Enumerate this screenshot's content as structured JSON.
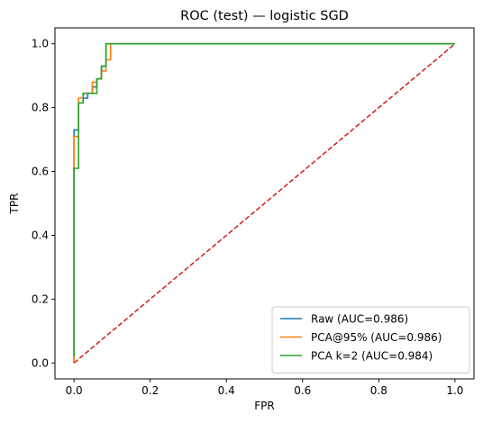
{
  "chart_data": {
    "type": "line",
    "title": "ROC (test) — logistic SGD",
    "xlabel": "FPR",
    "ylabel": "TPR",
    "xlim": [
      -0.05,
      1.05
    ],
    "ylim": [
      -0.05,
      1.05
    ],
    "xticks": [
      0.0,
      0.2,
      0.4,
      0.6,
      0.8,
      1.0
    ],
    "yticks": [
      0.0,
      0.2,
      0.4,
      0.6,
      0.8,
      1.0
    ],
    "xtick_labels": [
      "0.0",
      "0.2",
      "0.4",
      "0.6",
      "0.8",
      "1.0"
    ],
    "ytick_labels": [
      "0.0",
      "0.2",
      "0.4",
      "0.6",
      "0.8",
      "1.0"
    ],
    "grid": false,
    "legend_position": "lower-right",
    "series": [
      {
        "name": "Raw (AUC=0.986)",
        "color": "#1f77b4",
        "x": [
          0.0,
          0.0,
          0.0,
          0.0,
          0.0,
          0.0,
          0.0,
          0.0,
          0.0,
          0.0,
          0.0,
          0.0,
          0.0,
          0.012,
          0.012,
          0.012,
          0.012,
          0.024,
          0.024,
          0.036,
          0.036,
          0.048,
          0.048,
          0.06,
          0.06,
          0.072,
          0.072,
          0.084,
          0.084,
          1.0
        ],
        "y": [
          0.0,
          0.02,
          0.05,
          0.1,
          0.2,
          0.3,
          0.4,
          0.5,
          0.6,
          0.65,
          0.7,
          0.73,
          0.73,
          0.73,
          0.79,
          0.815,
          0.815,
          0.815,
          0.83,
          0.83,
          0.845,
          0.845,
          0.865,
          0.865,
          0.89,
          0.89,
          0.93,
          0.93,
          1.0,
          1.0
        ]
      },
      {
        "name": "PCA@95% (AUC=0.986)",
        "color": "#ff7f0e",
        "x": [
          0.0,
          0.0,
          0.0,
          0.0,
          0.0,
          0.0,
          0.0,
          0.012,
          0.012,
          0.012,
          0.024,
          0.024,
          0.048,
          0.048,
          0.06,
          0.06,
          0.072,
          0.072,
          0.084,
          0.084,
          0.096,
          0.096,
          1.0
        ],
        "y": [
          0.0,
          0.2,
          0.4,
          0.6,
          0.65,
          0.71,
          0.71,
          0.71,
          0.79,
          0.83,
          0.83,
          0.845,
          0.845,
          0.88,
          0.88,
          0.89,
          0.89,
          0.915,
          0.915,
          0.95,
          0.95,
          1.0,
          1.0
        ]
      },
      {
        "name": "PCA k=2 (AUC=0.984)",
        "color": "#2ca02c",
        "x": [
          0.0,
          0.0,
          0.0,
          0.0,
          0.0,
          0.0,
          0.012,
          0.012,
          0.012,
          0.024,
          0.024,
          0.036,
          0.036,
          0.06,
          0.06,
          0.072,
          0.072,
          0.084,
          0.084,
          1.0
        ],
        "y": [
          0.02,
          0.2,
          0.4,
          0.6,
          0.61,
          0.61,
          0.61,
          0.7,
          0.815,
          0.815,
          0.845,
          0.845,
          0.845,
          0.845,
          0.89,
          0.89,
          0.93,
          0.93,
          1.0,
          1.0
        ]
      },
      {
        "color": "#d62728",
        "dashed": true,
        "x": [
          0.0,
          1.0
        ],
        "y": [
          0.0,
          1.0
        ]
      }
    ]
  }
}
